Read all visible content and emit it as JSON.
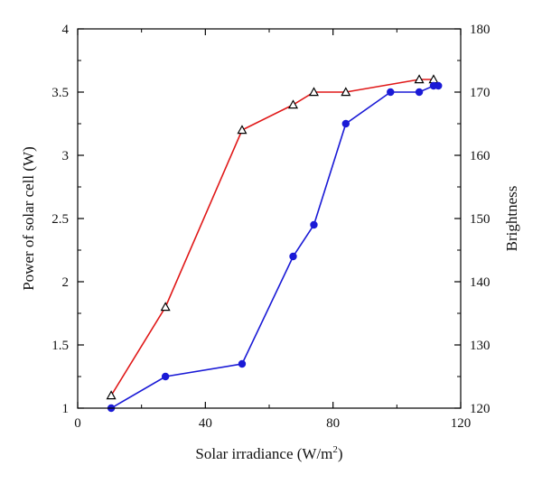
{
  "chart_data": {
    "type": "line",
    "xlabel": "Solar irradiance (W/m",
    "xlabel_sup": "2",
    "xlabel_end": ")",
    "ylabel_left": "Power of solar cell (W)",
    "ylabel_right": "Brightness",
    "xlim": [
      0,
      120
    ],
    "ylim_left": [
      1,
      4
    ],
    "ylim_right": [
      120,
      180
    ],
    "x_ticks": [
      0,
      40,
      80,
      120
    ],
    "x_tick_labels": [
      "0",
      "40",
      "80",
      "120"
    ],
    "y_left_ticks": [
      1,
      1.5,
      2,
      2.5,
      3,
      3.5,
      4
    ],
    "y_left_tick_labels": [
      "1",
      "1.5",
      "2",
      "2.5",
      "3",
      "3.5",
      "4"
    ],
    "y_right_ticks": [
      120,
      130,
      140,
      150,
      160,
      170,
      180
    ],
    "y_right_tick_labels": [
      "120",
      "130",
      "140",
      "150",
      "160",
      "170",
      "180"
    ],
    "grid": false,
    "legend": "none",
    "series": [
      {
        "axis": "left",
        "color": "#e01818",
        "marker": "open-triangle",
        "x": [
          10.5,
          27.5,
          51.5,
          67.5,
          74,
          84,
          107,
          111.5
        ],
        "y": [
          1.1,
          1.8,
          3.2,
          3.4,
          3.5,
          3.5,
          3.6,
          3.6
        ]
      },
      {
        "axis": "right",
        "color": "#1a1ad6",
        "marker": "filled-circle",
        "x": [
          10.5,
          27.5,
          51.5,
          67.5,
          74,
          84,
          98,
          107,
          111.5,
          113
        ],
        "y": [
          120,
          125,
          127,
          144,
          149,
          165,
          170,
          170,
          171,
          171
        ]
      }
    ]
  }
}
